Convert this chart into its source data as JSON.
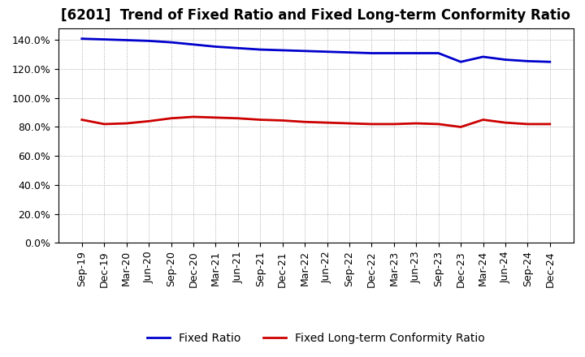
{
  "title": "[6201]  Trend of Fixed Ratio and Fixed Long-term Conformity Ratio",
  "x_labels": [
    "Sep-19",
    "Dec-19",
    "Mar-20",
    "Jun-20",
    "Sep-20",
    "Dec-20",
    "Mar-21",
    "Jun-21",
    "Sep-21",
    "Dec-21",
    "Mar-22",
    "Jun-22",
    "Sep-22",
    "Dec-22",
    "Mar-23",
    "Jun-23",
    "Sep-23",
    "Dec-23",
    "Mar-24",
    "Jun-24",
    "Sep-24",
    "Dec-24"
  ],
  "fixed_ratio": [
    141.0,
    140.5,
    140.0,
    139.5,
    138.5,
    137.0,
    135.5,
    134.5,
    133.5,
    133.0,
    132.5,
    132.0,
    131.5,
    131.0,
    131.0,
    131.0,
    131.0,
    125.0,
    128.5,
    126.5,
    125.5,
    125.0
  ],
  "fixed_lt_ratio": [
    85.0,
    82.0,
    82.5,
    84.0,
    86.0,
    87.0,
    86.5,
    86.0,
    85.0,
    84.5,
    83.5,
    83.0,
    82.5,
    82.0,
    82.0,
    82.5,
    82.0,
    80.0,
    85.0,
    83.0,
    82.0,
    82.0
  ],
  "fixed_ratio_color": "#0000CC",
  "fixed_lt_ratio_color": "#CC0000",
  "background_color": "#FFFFFF",
  "plot_bg_color": "#FFFFFF",
  "grid_color": "#999999",
  "ylim": [
    0,
    148
  ],
  "yticks": [
    0,
    20,
    40,
    60,
    80,
    100,
    120,
    140
  ],
  "ytick_labels": [
    "0.0%",
    "20.0%",
    "40.0%",
    "60.0%",
    "80.0%",
    "100.0%",
    "120.0%",
    "140.0%"
  ],
  "legend_fixed_ratio": "Fixed Ratio",
  "legend_fixed_lt_ratio": "Fixed Long-term Conformity Ratio",
  "title_fontsize": 12,
  "tick_fontsize": 9,
  "legend_fontsize": 10,
  "line_width": 2.0
}
